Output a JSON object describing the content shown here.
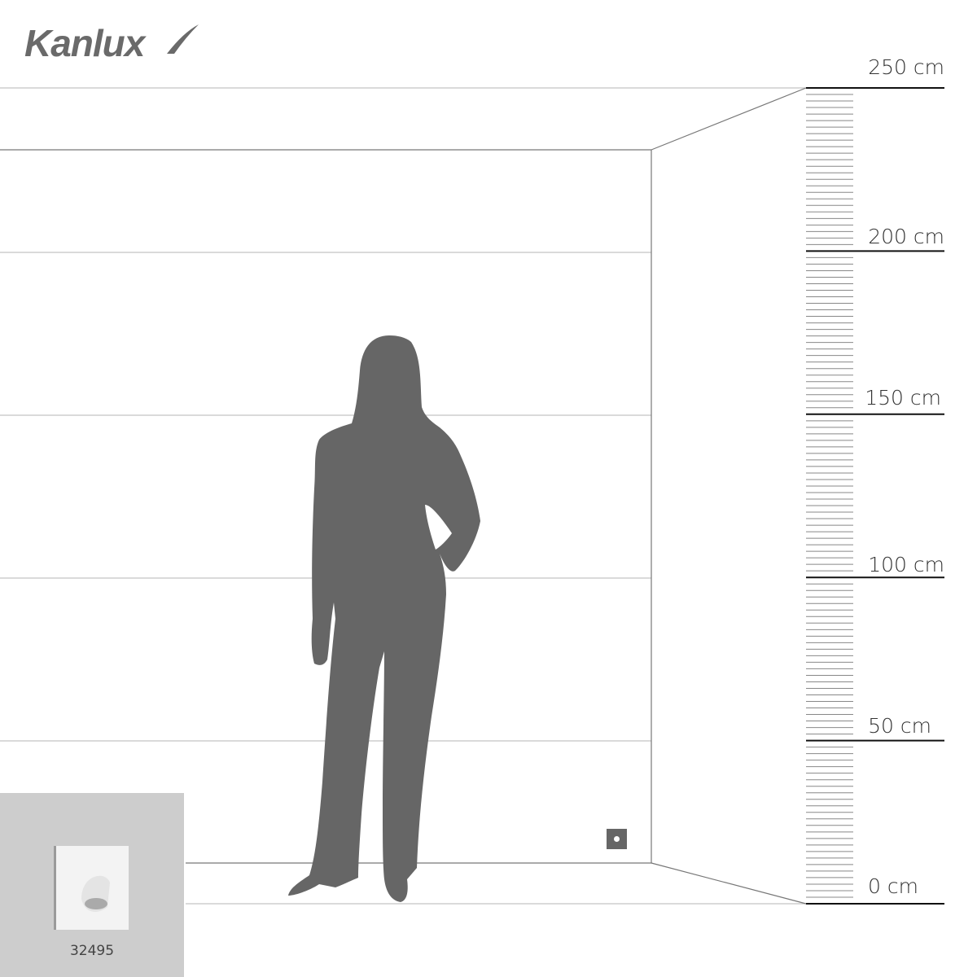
{
  "brand": {
    "logo_text": "Kanlux"
  },
  "ruler": {
    "labels": [
      "250 cm",
      "200 cm",
      "150 cm",
      "100 cm",
      "50 cm",
      "0 cm"
    ],
    "max_cm": 250
  },
  "product": {
    "code": "32495"
  },
  "colors": {
    "silhouette": "#666666",
    "inset_bg": "#cdcdcd",
    "lines": "#bbbbbb"
  }
}
